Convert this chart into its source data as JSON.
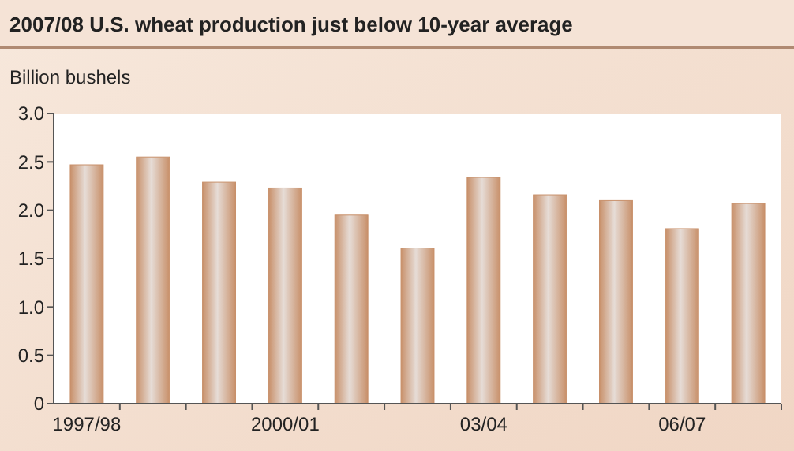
{
  "chart_data": {
    "type": "bar",
    "title": "2007/08 U.S. wheat production just below 10-year average",
    "ylabel": "Billion bushels",
    "categories": [
      "1997/98",
      null,
      null,
      "2000/01",
      null,
      null,
      "03/04",
      null,
      null,
      "06/07",
      null
    ],
    "values": [
      2.47,
      2.55,
      2.29,
      2.23,
      1.95,
      1.61,
      2.34,
      2.16,
      2.1,
      1.81,
      2.07
    ],
    "color": "#c8906a",
    "ylim": [
      0,
      3
    ],
    "yticks": [
      0,
      {
        "value": 0.5,
        "label": "0.5"
      },
      {
        "value": 1,
        "label": "1.0"
      },
      {
        "value": 1.5,
        "label": "1.5"
      },
      {
        "value": 2,
        "label": "2.0"
      },
      {
        "value": 2.5,
        "label": "2.5"
      },
      {
        "value": 3,
        "label": "3.0"
      }
    ],
    "grid": false
  }
}
